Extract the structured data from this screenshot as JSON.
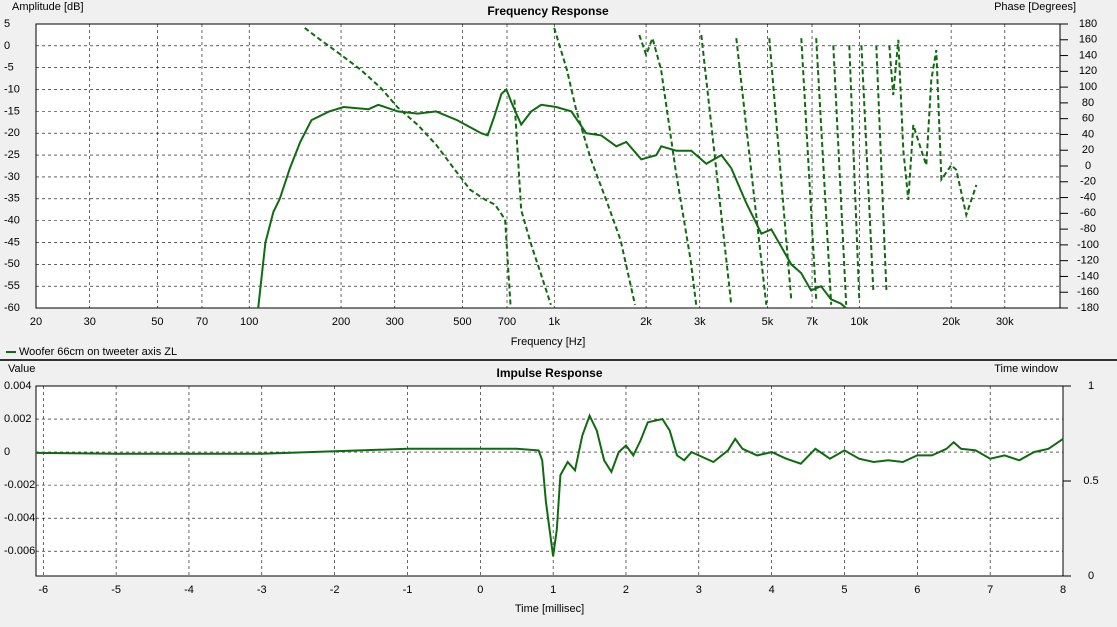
{
  "chart_data": [
    {
      "type": "line",
      "title": "Frequency Response",
      "xlabel": "Frequency [Hz]",
      "ylabel": "Amplitude [dB]",
      "y2label": "Phase [Degrees]",
      "xscale": "log",
      "xlim": [
        20,
        45500
      ],
      "ylim": [
        -60,
        5
      ],
      "y2lim": [
        -180,
        180
      ],
      "grid": true,
      "legend": "bottom-left",
      "xticks": [
        20,
        30,
        50,
        70,
        100,
        200,
        300,
        500,
        700,
        {
          "value": 1000,
          "label": "1k"
        },
        {
          "value": 2000,
          "label": "2k"
        },
        {
          "value": 3000,
          "label": "3k"
        },
        {
          "value": 5000,
          "label": "5k"
        },
        {
          "value": 7000,
          "label": "7k"
        },
        {
          "value": 10000,
          "label": "10k"
        },
        {
          "value": 20000,
          "label": "20k"
        },
        {
          "value": 30000,
          "label": "30k"
        }
      ],
      "yticks": [
        5,
        0,
        -5,
        -10,
        -15,
        -20,
        -25,
        -30,
        -35,
        -40,
        -45,
        -50,
        -55,
        -60
      ],
      "y2ticks": [
        180,
        160,
        140,
        120,
        100,
        80,
        60,
        40,
        20,
        0,
        -20,
        -40,
        -60,
        -80,
        -100,
        -120,
        -140,
        -160,
        -180
      ],
      "series": [
        {
          "name": "Woofer 66cm on tweeter axis ZL",
          "color": "#0f6b0f",
          "dashed": false,
          "x": [
            107,
            113,
            120,
            126,
            136,
            147,
            160,
            183,
            204,
            246,
            265,
            307,
            357,
            410,
            480,
            576,
            605,
            637,
            671,
            697,
            724,
            779,
            841,
            906,
            1015,
            1137,
            1273,
            1426,
            1598,
            1723,
            1929,
            2160,
            2243,
            2512,
            2814,
            3152,
            3531,
            3806,
            4263,
            4776,
            5148,
            5549,
            5982,
            6447,
            6950,
            7492,
            8076,
            8705,
            9036
          ],
          "values": [
            -60,
            -45,
            -38,
            -35,
            -28,
            -22,
            -17,
            -15,
            -14,
            -14.5,
            -13.5,
            -15,
            -15.5,
            -15,
            -17,
            -20,
            -20.5,
            -16,
            -11,
            -10,
            -13,
            -18,
            -15,
            -13.5,
            -14,
            -15,
            -20,
            -20.5,
            -23,
            -22,
            -26,
            -25,
            -23,
            -24,
            -24,
            -27,
            -25,
            -28,
            -36,
            -43,
            -42,
            -46,
            -50,
            -52,
            -56,
            -55,
            -58,
            -59,
            -60
          ]
        },
        {
          "color": "#0f6b0f",
          "dashed": true,
          "axis": "y2",
          "x": [
            152,
            171,
            200,
            232,
            270,
            307,
            357,
            410,
            460,
            530,
            595,
            640,
            690,
            720,
            null,
            740,
            779,
            841,
            906,
            975,
            null,
            1000,
            1100,
            1180,
            1320,
            1480,
            1650,
            1840,
            null,
            1900,
            2000,
            2100,
            2240,
            2500,
            2800,
            2920,
            null,
            3034,
            3805,
            null,
            3952,
            4955,
            null,
            5070,
            5985,
            null,
            6455,
            7226,
            null,
            7226,
            8090,
            null,
            8222,
            9060,
            null,
            9274,
            10000,
            null,
            10160,
            11120,
            null,
            11370,
            12270,
            null,
            12540,
            12920,
            13420,
            13940,
            14480,
            15040,
            15970,
            16590,
            17220,
            17880,
            18580,
            20030,
            20800,
            22430,
            24200
          ],
          "values": [
            175,
            160,
            141,
            122,
            99,
            74,
            52,
            27,
            1,
            -30,
            -43,
            -49,
            -68,
            -180,
            null,
            84,
            -56,
            -100,
            -138,
            -176,
            null,
            175,
            122,
            71,
            8,
            -43,
            -94,
            -176,
            null,
            166,
            141,
            162,
            122,
            -5,
            -119,
            -176,
            null,
            166,
            -176,
            null,
            162,
            -176,
            null,
            162,
            -170,
            null,
            162,
            -170,
            null,
            162,
            -176,
            null,
            153,
            -176,
            null,
            153,
            -170,
            null,
            153,
            -157,
            null,
            153,
            -157,
            null,
            153,
            90,
            160,
            20,
            -43,
            52,
            20,
            1,
            109,
            147,
            -17,
            1,
            -5,
            -62,
            -24
          ]
        }
      ]
    },
    {
      "type": "line",
      "title": "Impulse Response",
      "xlabel": "Time [millisec]",
      "ylabel": "Value",
      "y2label": "Time window",
      "xlim": [
        -6.1,
        8
      ],
      "ylim": [
        -0.0075,
        0.004
      ],
      "y2lim": [
        0,
        1
      ],
      "grid": true,
      "xticks": [
        -6,
        -5,
        -4,
        -3,
        -2,
        -1,
        0,
        1,
        2,
        3,
        4,
        5,
        6,
        7,
        8
      ],
      "yticks": [
        0.004,
        0.002,
        0,
        -0.002,
        -0.004,
        -0.006
      ],
      "y2ticks": [
        1,
        0.5,
        0
      ],
      "series": [
        {
          "color": "#0f6b0f",
          "dashed": false,
          "x": [
            -6.1,
            -5,
            -3,
            -2,
            -1,
            0,
            0.5,
            0.8,
            0.85,
            0.9,
            1,
            1.05,
            1.1,
            1.2,
            1.3,
            1.4,
            1.5,
            1.6,
            1.7,
            1.8,
            1.9,
            2,
            2.1,
            2.2,
            2.3,
            2.5,
            2.6,
            2.7,
            2.8,
            2.9,
            3,
            3.2,
            3.4,
            3.5,
            3.6,
            3.8,
            4,
            4.2,
            4.4,
            4.6,
            4.8,
            5,
            5.2,
            5.4,
            5.6,
            5.8,
            6,
            6.2,
            6.4,
            6.5,
            6.6,
            6.8,
            7,
            7.2,
            7.4,
            7.6,
            7.8,
            8
          ],
          "values": [
            -5e-05,
            -0.0001,
            -0.0001,
            5e-05,
            0.0002,
            0.0002,
            0.0002,
            0.0001,
            -0.0005,
            -0.003,
            -0.0063,
            -0.0047,
            -0.0014,
            -0.0006,
            -0.0011,
            0.001,
            0.0022,
            0.0013,
            -0.0005,
            -0.0012,
            0,
            0.0004,
            -0.0002,
            0.0007,
            0.0018,
            0.002,
            0.0013,
            -0.0002,
            -0.0005,
            0,
            -0.0002,
            -0.0006,
            0.0001,
            0.0008,
            0.0002,
            -0.0002,
            0,
            -0.0004,
            -0.0007,
            0.0002,
            -0.0004,
            0.0001,
            -0.0004,
            -0.0006,
            -0.0005,
            -0.0006,
            -0.0002,
            -0.0002,
            0.0002,
            0.0006,
            0.0002,
            0.0001,
            -0.0004,
            -0.0002,
            -0.0005,
            0,
            0.0002,
            0.0008
          ]
        }
      ]
    }
  ]
}
